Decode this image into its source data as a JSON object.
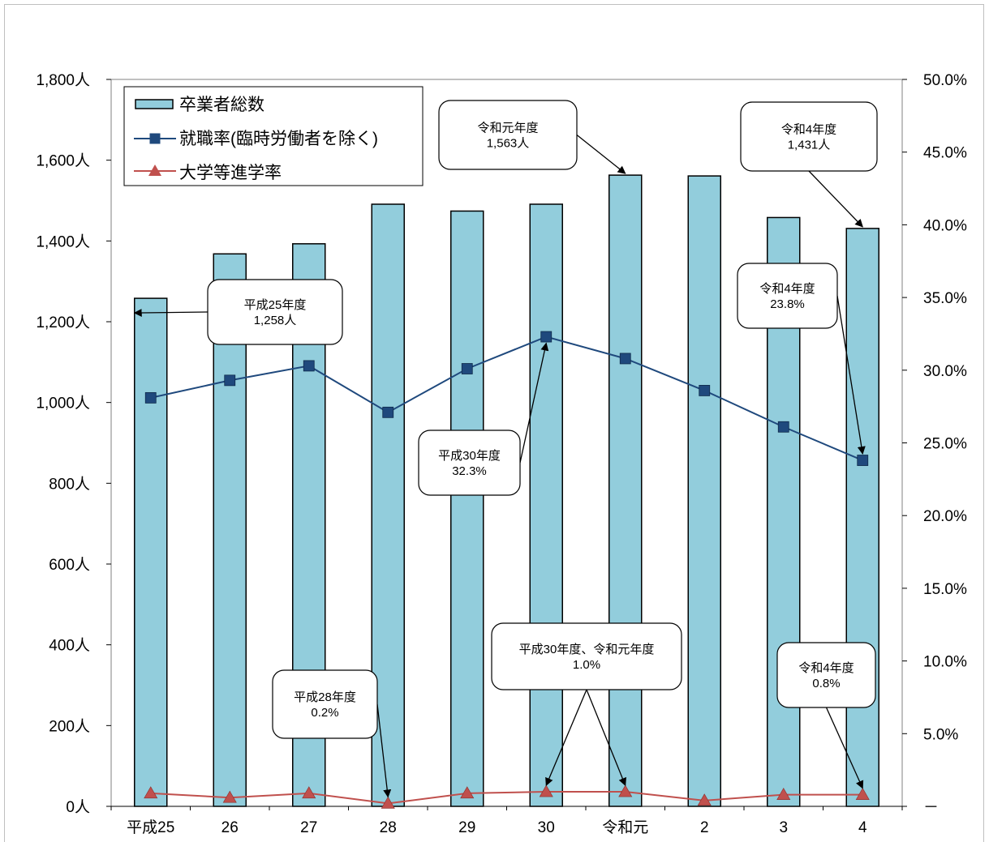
{
  "chart_data": {
    "type": "bar",
    "categories": [
      "平成25",
      "26",
      "27",
      "28",
      "29",
      "30",
      "令和元",
      "2",
      "3",
      "4"
    ],
    "series": [
      {
        "name": "卒業者総数",
        "type": "bar",
        "axis": "left",
        "color": "#92cddc",
        "values": [
          1258,
          1368,
          1393,
          1491,
          1474,
          1491,
          1563,
          1561,
          1458,
          1431
        ]
      },
      {
        "name": "就職率(臨時労働者を除く)",
        "type": "line",
        "axis": "right",
        "color": "#1f497d",
        "values": [
          28.1,
          29.3,
          30.3,
          27.1,
          30.1,
          32.3,
          30.8,
          28.6,
          26.1,
          23.8
        ]
      },
      {
        "name": "大学等進学率",
        "type": "line",
        "axis": "right",
        "color": "#c0504d",
        "values": [
          0.9,
          0.6,
          0.9,
          0.2,
          0.9,
          1.0,
          1.0,
          0.4,
          0.8,
          0.8
        ]
      }
    ],
    "y_left": {
      "ylim": [
        0,
        1800
      ],
      "ticks": [
        "0人",
        "200人",
        "400人",
        "600人",
        "800人",
        "1,000人",
        "1,200人",
        "1,400人",
        "1,600人",
        "1,800人"
      ]
    },
    "y_right": {
      "ylim": [
        0,
        50
      ],
      "ticks": [
        "－",
        "5.0%",
        "10.0%",
        "15.0%",
        "20.0%",
        "25.0%",
        "30.0%",
        "35.0%",
        "40.0%",
        "45.0%",
        "50.0%"
      ]
    },
    "legend_position": "top-left",
    "annotations": [
      {
        "id": "h25",
        "line1": "平成25年度",
        "line2": "1,258人",
        "series": 0,
        "index": 0
      },
      {
        "id": "r1",
        "line1": "令和元年度",
        "line2": "1,563人",
        "series": 0,
        "index": 6
      },
      {
        "id": "r4",
        "line1": "令和4年度",
        "line2": "1,431人",
        "series": 0,
        "index": 9
      },
      {
        "id": "h30emp",
        "line1": "平成30年度",
        "line2": "32.3%",
        "series": 1,
        "index": 5
      },
      {
        "id": "r4emp",
        "line1": "令和4年度",
        "line2": "23.8%",
        "series": 1,
        "index": 9
      },
      {
        "id": "h28adv",
        "line1": "平成28年度",
        "line2": "0.2%",
        "series": 2,
        "index": 3
      },
      {
        "id": "h30r1adv",
        "line1": "平成30年度、令和元年度",
        "line2": "1.0%",
        "series": 2,
        "index": [
          5,
          6
        ]
      },
      {
        "id": "r4adv",
        "line1": "令和4年度",
        "line2": "0.8%",
        "series": 2,
        "index": 9
      }
    ]
  }
}
